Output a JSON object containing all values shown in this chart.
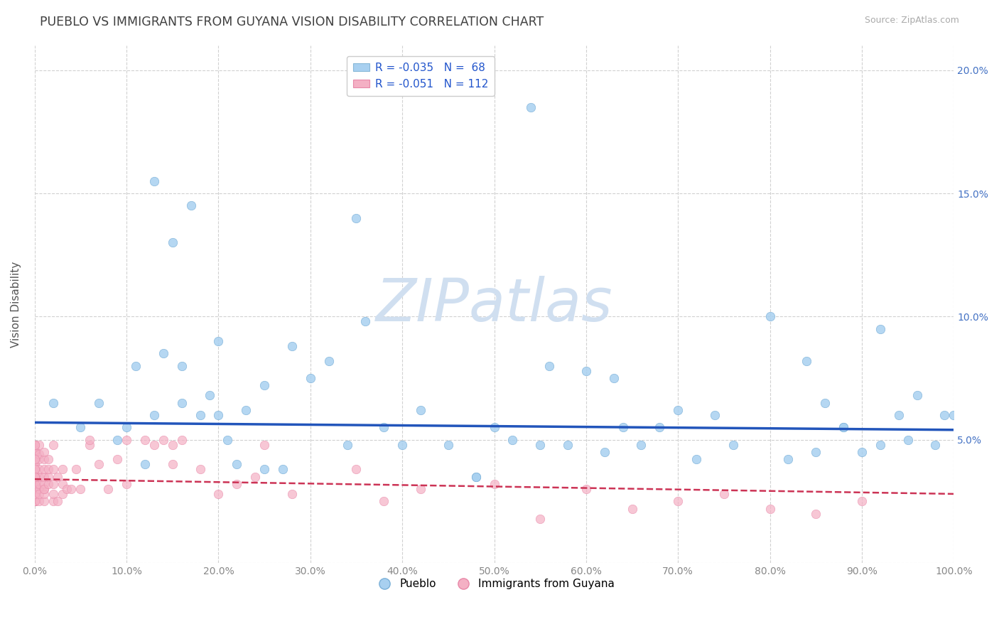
{
  "title": "PUEBLO VS IMMIGRANTS FROM GUYANA VISION DISABILITY CORRELATION CHART",
  "source": "Source: ZipAtlas.com",
  "ylabel": "Vision Disability",
  "xlim": [
    0,
    1.0
  ],
  "ylim": [
    0,
    0.21
  ],
  "xticks": [
    0.0,
    0.1,
    0.2,
    0.3,
    0.4,
    0.5,
    0.6,
    0.7,
    0.8,
    0.9,
    1.0
  ],
  "yticks": [
    0.0,
    0.05,
    0.1,
    0.15,
    0.2
  ],
  "xticklabels": [
    "0.0%",
    "10.0%",
    "20.0%",
    "30.0%",
    "40.0%",
    "50.0%",
    "60.0%",
    "70.0%",
    "80.0%",
    "90.0%",
    "100.0%"
  ],
  "yticklabels_left": [
    "",
    "",
    "",
    "",
    ""
  ],
  "yticklabels_right": [
    "",
    "5.0%",
    "10.0%",
    "15.0%",
    "20.0%"
  ],
  "legend_entries": [
    {
      "label": "R = -0.035   N =  68",
      "color": "#a8d0f0"
    },
    {
      "label": "R = -0.051   N = 112",
      "color": "#f4b8c8"
    }
  ],
  "legend_labels_bottom": [
    "Pueblo",
    "Immigrants from Guyana"
  ],
  "blue_scatter_x": [
    0.02,
    0.05,
    0.07,
    0.09,
    0.1,
    0.11,
    0.12,
    0.13,
    0.14,
    0.15,
    0.16,
    0.17,
    0.18,
    0.19,
    0.2,
    0.21,
    0.22,
    0.23,
    0.25,
    0.27,
    0.28,
    0.3,
    0.32,
    0.35,
    0.36,
    0.38,
    0.4,
    0.42,
    0.45,
    0.48,
    0.5,
    0.52,
    0.54,
    0.56,
    0.58,
    0.6,
    0.62,
    0.64,
    0.66,
    0.68,
    0.7,
    0.72,
    0.74,
    0.76,
    0.8,
    0.82,
    0.84,
    0.86,
    0.88,
    0.9,
    0.92,
    0.94,
    0.96,
    0.98,
    1.0,
    0.88,
    0.92,
    0.95,
    0.99,
    0.85,
    0.63,
    0.55,
    0.48,
    0.34,
    0.25,
    0.2,
    0.16,
    0.13
  ],
  "blue_scatter_y": [
    0.065,
    0.055,
    0.065,
    0.05,
    0.055,
    0.08,
    0.04,
    0.06,
    0.085,
    0.13,
    0.08,
    0.145,
    0.06,
    0.068,
    0.09,
    0.05,
    0.04,
    0.062,
    0.072,
    0.038,
    0.088,
    0.075,
    0.082,
    0.14,
    0.098,
    0.055,
    0.048,
    0.062,
    0.048,
    0.035,
    0.055,
    0.05,
    0.185,
    0.08,
    0.048,
    0.078,
    0.045,
    0.055,
    0.048,
    0.055,
    0.062,
    0.042,
    0.06,
    0.048,
    0.1,
    0.042,
    0.082,
    0.065,
    0.055,
    0.045,
    0.048,
    0.06,
    0.068,
    0.048,
    0.06,
    0.055,
    0.095,
    0.05,
    0.06,
    0.045,
    0.075,
    0.048,
    0.035,
    0.048,
    0.038,
    0.06,
    0.065,
    0.155
  ],
  "pink_scatter_x": [
    0.0,
    0.0,
    0.0,
    0.0,
    0.0,
    0.0,
    0.0,
    0.0,
    0.0,
    0.0,
    0.0,
    0.0,
    0.0,
    0.0,
    0.0,
    0.0,
    0.0,
    0.0,
    0.0,
    0.0,
    0.0,
    0.0,
    0.0,
    0.0,
    0.0,
    0.0,
    0.0,
    0.0,
    0.0,
    0.0,
    0.0,
    0.0,
    0.0,
    0.0,
    0.0,
    0.0,
    0.0,
    0.0,
    0.0,
    0.0,
    0.0,
    0.005,
    0.005,
    0.005,
    0.005,
    0.005,
    0.005,
    0.005,
    0.005,
    0.005,
    0.01,
    0.01,
    0.01,
    0.01,
    0.01,
    0.01,
    0.01,
    0.01,
    0.015,
    0.015,
    0.015,
    0.015,
    0.02,
    0.02,
    0.02,
    0.02,
    0.025,
    0.025,
    0.03,
    0.03,
    0.03,
    0.035,
    0.04,
    0.045,
    0.05,
    0.06,
    0.07,
    0.08,
    0.09,
    0.1,
    0.12,
    0.13,
    0.14,
    0.15,
    0.16,
    0.18,
    0.2,
    0.22,
    0.24,
    0.28,
    0.35,
    0.38,
    0.42,
    0.5,
    0.55,
    0.6,
    0.65,
    0.7,
    0.75,
    0.8,
    0.85,
    0.9,
    0.25,
    0.15,
    0.1,
    0.06,
    0.02,
    0.01,
    0.0,
    0.0,
    0.0,
    0.0
  ],
  "pink_scatter_y": [
    0.03,
    0.03,
    0.035,
    0.035,
    0.038,
    0.038,
    0.042,
    0.042,
    0.042,
    0.045,
    0.045,
    0.048,
    0.048,
    0.025,
    0.025,
    0.028,
    0.03,
    0.03,
    0.032,
    0.035,
    0.038,
    0.04,
    0.042,
    0.044,
    0.046,
    0.048,
    0.025,
    0.027,
    0.03,
    0.032,
    0.034,
    0.036,
    0.025,
    0.028,
    0.03,
    0.032,
    0.035,
    0.038,
    0.04,
    0.025,
    0.028,
    0.03,
    0.032,
    0.035,
    0.038,
    0.042,
    0.044,
    0.048,
    0.025,
    0.028,
    0.03,
    0.032,
    0.035,
    0.038,
    0.042,
    0.025,
    0.028,
    0.03,
    0.032,
    0.035,
    0.038,
    0.042,
    0.025,
    0.028,
    0.032,
    0.038,
    0.025,
    0.035,
    0.028,
    0.032,
    0.038,
    0.03,
    0.03,
    0.038,
    0.03,
    0.048,
    0.04,
    0.03,
    0.042,
    0.032,
    0.05,
    0.048,
    0.05,
    0.04,
    0.05,
    0.038,
    0.028,
    0.032,
    0.035,
    0.028,
    0.038,
    0.025,
    0.03,
    0.032,
    0.018,
    0.03,
    0.022,
    0.025,
    0.028,
    0.022,
    0.02,
    0.025,
    0.048,
    0.048,
    0.05,
    0.05,
    0.048,
    0.045,
    0.048,
    0.042,
    0.038,
    0.035
  ],
  "blue_line_x": [
    0.0,
    1.0
  ],
  "blue_line_y": [
    0.057,
    0.054
  ],
  "pink_line_x": [
    0.0,
    1.0
  ],
  "pink_line_y": [
    0.034,
    0.028
  ],
  "scatter_size": 80,
  "blue_color": "#a8d0f0",
  "pink_color": "#f4b0c4",
  "blue_scatter_edge": "#7ab0d8",
  "pink_scatter_edge": "#e888a8",
  "blue_line_color": "#2255bb",
  "pink_line_color": "#cc3355",
  "watermark_text": "ZIPatlas",
  "watermark_color": "#d0dff0",
  "background_color": "#ffffff",
  "grid_color": "#cccccc",
  "title_color": "#404040",
  "title_fontsize": 12.5,
  "axis_tick_color": "#888888"
}
